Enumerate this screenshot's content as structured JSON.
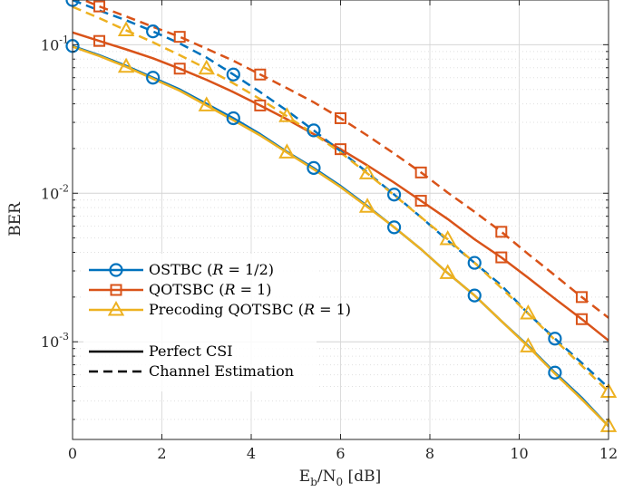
{
  "chart_data": {
    "type": "line",
    "yscale": "log",
    "xlim": [
      0,
      12
    ],
    "ylim": [
      0.00022,
      0.2
    ],
    "xticks": [
      0,
      2,
      4,
      6,
      8,
      10,
      12
    ],
    "xtick_labels": [
      "0",
      "2",
      "4",
      "6",
      "8",
      "10",
      "12"
    ],
    "ytick_labels": [
      {
        "base": "10",
        "exp": "-1",
        "value": 0.1
      },
      {
        "base": "10",
        "exp": "-2",
        "value": 0.01
      },
      {
        "base": "10",
        "exp": "-3",
        "value": 0.001
      }
    ],
    "xlabel": {
      "main": "E",
      "sub1": "b",
      "mid": "/N",
      "sub2": "0",
      "tail": " [dB]"
    },
    "ylabel": "BER",
    "grid": true,
    "legend_position": "bottom-left",
    "series": [
      {
        "name": "OSTBC (R = 1/2)",
        "csi": "Perfect CSI",
        "color": "#0072BD",
        "marker": "circle",
        "dash": false,
        "x": [
          0,
          0.6,
          1.2,
          1.8,
          2.4,
          3.0,
          3.6,
          4.2,
          4.8,
          5.4,
          6.0,
          6.6,
          7.2,
          7.8,
          8.4,
          9.0,
          9.6,
          10.2,
          10.8,
          11.4,
          12
        ],
        "y": [
          0.098,
          0.085,
          0.072,
          0.06,
          0.05,
          0.04,
          0.032,
          0.025,
          0.019,
          0.0148,
          0.0112,
          0.0082,
          0.0059,
          0.0042,
          0.0029,
          0.00205,
          0.00138,
          0.00094,
          0.00062,
          0.00042,
          0.00027
        ],
        "marker_x": [
          0,
          1.8,
          3.6,
          5.4,
          7.2,
          9.0,
          10.8
        ]
      },
      {
        "name": "QOTSBC (R = 1)",
        "csi": "Perfect CSI",
        "color": "#D95319",
        "marker": "square",
        "dash": false,
        "x": [
          0,
          0.6,
          1.2,
          1.8,
          2.4,
          3.0,
          3.6,
          4.2,
          4.8,
          5.4,
          6.0,
          6.6,
          7.2,
          7.8,
          8.4,
          9.0,
          9.6,
          10.2,
          10.8,
          11.4,
          12
        ],
        "y": [
          0.121,
          0.106,
          0.093,
          0.081,
          0.069,
          0.058,
          0.048,
          0.039,
          0.0315,
          0.025,
          0.0198,
          0.0154,
          0.0118,
          0.0089,
          0.0067,
          0.0049,
          0.0037,
          0.0027,
          0.00195,
          0.00142,
          0.00102
        ],
        "marker_x": [
          0.6,
          2.4,
          4.2,
          6.0,
          7.8,
          9.6,
          11.4
        ]
      },
      {
        "name": "Precoding QOTSBC (R = 1)",
        "csi": "Perfect CSI",
        "color": "#EDB120",
        "marker": "triangle",
        "dash": false,
        "x": [
          0,
          0.6,
          1.2,
          1.8,
          2.4,
          3.0,
          3.6,
          4.2,
          4.8,
          5.4,
          6.0,
          6.6,
          7.2,
          7.8,
          8.4,
          9.0,
          9.6,
          10.2,
          10.8,
          11.4,
          12
        ],
        "y": [
          0.097,
          0.084,
          0.071,
          0.059,
          0.049,
          0.039,
          0.031,
          0.0245,
          0.0188,
          0.0145,
          0.011,
          0.0081,
          0.0059,
          0.0042,
          0.0029,
          0.00205,
          0.00138,
          0.00093,
          0.00061,
          0.00041,
          0.00027
        ],
        "marker_x": [
          1.2,
          3.0,
          4.8,
          6.6,
          8.4,
          10.2,
          12
        ]
      },
      {
        "name": "OSTBC (R = 1/2)",
        "csi": "Channel Estimation",
        "color": "#0072BD",
        "marker": "circle",
        "dash": true,
        "x": [
          0,
          0.6,
          1.2,
          1.8,
          2.4,
          3.0,
          3.6,
          4.2,
          4.8,
          5.4,
          6.0,
          6.6,
          7.2,
          7.8,
          8.4,
          9.0,
          9.6,
          10.2,
          10.8,
          11.4,
          12
        ],
        "y": [
          0.2,
          0.17,
          0.146,
          0.123,
          0.102,
          0.082,
          0.063,
          0.048,
          0.036,
          0.0265,
          0.0192,
          0.0138,
          0.0098,
          0.0069,
          0.0048,
          0.0034,
          0.0024,
          0.00155,
          0.00105,
          0.00072,
          0.00049
        ],
        "marker_x": [
          0,
          1.8,
          3.6,
          5.4,
          7.2,
          9.0,
          10.8
        ]
      },
      {
        "name": "QOTSBC (R = 1)",
        "csi": "Channel Estimation",
        "color": "#D95319",
        "marker": "square",
        "dash": true,
        "x": [
          0,
          0.6,
          1.2,
          1.8,
          2.4,
          3.0,
          3.6,
          4.2,
          4.8,
          5.4,
          6.0,
          6.6,
          7.2,
          7.8,
          8.4,
          9.0,
          9.6,
          10.2,
          10.8,
          11.4,
          12
        ],
        "y": [
          0.215,
          0.181,
          0.155,
          0.132,
          0.113,
          0.094,
          0.078,
          0.063,
          0.051,
          0.041,
          0.032,
          0.0245,
          0.0185,
          0.0138,
          0.0101,
          0.0075,
          0.0055,
          0.0039,
          0.0028,
          0.002,
          0.00145
        ],
        "marker_x": [
          0.6,
          2.4,
          4.2,
          6.0,
          7.8,
          9.6,
          11.4
        ]
      },
      {
        "name": "Precoding QOTSBC (R = 1)",
        "csi": "Channel Estimation",
        "color": "#EDB120",
        "marker": "triangle",
        "dash": true,
        "x": [
          0,
          0.6,
          1.2,
          1.8,
          2.4,
          3.0,
          3.6,
          4.2,
          4.8,
          5.4,
          6.0,
          6.6,
          7.2,
          7.8,
          8.4,
          9.0,
          9.6,
          10.2,
          10.8,
          11.4,
          12
        ],
        "y": [
          0.18,
          0.151,
          0.125,
          0.104,
          0.085,
          0.069,
          0.055,
          0.043,
          0.033,
          0.0251,
          0.0188,
          0.0136,
          0.0097,
          0.0069,
          0.0049,
          0.0034,
          0.0023,
          0.00155,
          0.00103,
          0.00069,
          0.00046
        ],
        "marker_x": [
          1.2,
          3.0,
          4.8,
          6.6,
          8.4,
          10.2,
          12
        ]
      }
    ],
    "legend_entries": [
      {
        "prefix": "OSTBC (",
        "var": "R",
        "suffix": " = 1/2)",
        "color": "#0072BD",
        "marker": "circle"
      },
      {
        "prefix": "QOTSBC (",
        "var": "R",
        "suffix": " = 1)",
        "color": "#D95319",
        "marker": "square"
      },
      {
        "prefix": "Precoding QOTSBC (",
        "var": "R",
        "suffix": " = 1)",
        "color": "#EDB120",
        "marker": "triangle"
      },
      {
        "label": "Perfect CSI",
        "dash": false,
        "color": "#000000"
      },
      {
        "label": "Channel Estimation",
        "dash": true,
        "color": "#000000"
      }
    ]
  }
}
